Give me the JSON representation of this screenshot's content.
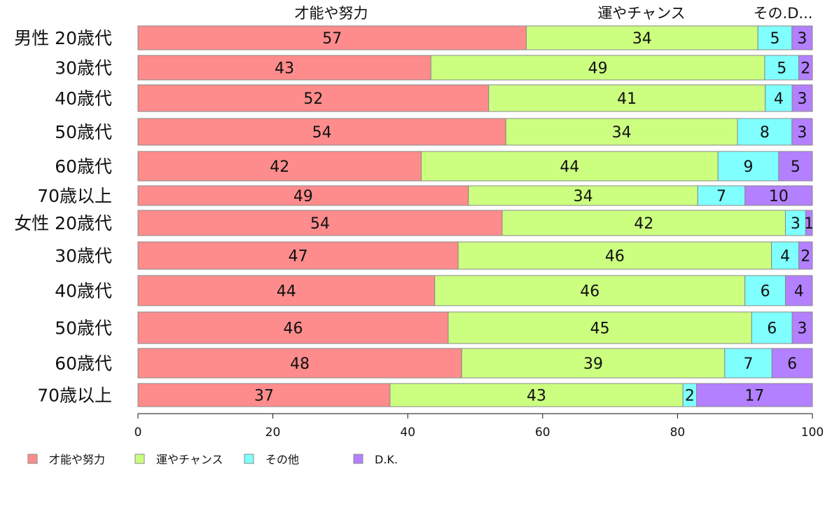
{
  "chart_data": {
    "type": "bar",
    "orientation": "horizontal",
    "stacked": true,
    "xlim": [
      0,
      100
    ],
    "x_ticks": [
      "0",
      "20",
      "40",
      "60",
      "80",
      "100"
    ],
    "top_labels": [
      "才能や努力",
      "運やチャンス",
      "その.D..."
    ],
    "categories": [
      "男性 20歳代",
      "30歳代",
      "40歳代",
      "50歳代",
      "60歳代",
      "70歳以上",
      "女性 20歳代",
      "30歳代",
      "40歳代",
      "50歳代",
      "60歳代",
      "70歳以上"
    ],
    "series": [
      {
        "name": "才能や努力",
        "color": "#ff8c8c",
        "values": [
          57,
          43,
          52,
          54,
          42,
          49,
          54,
          47,
          44,
          46,
          48,
          37
        ]
      },
      {
        "name": "運やチャンス",
        "color": "#ccff80",
        "values": [
          34,
          49,
          41,
          34,
          44,
          34,
          42,
          46,
          46,
          45,
          39,
          43
        ]
      },
      {
        "name": "その他",
        "color": "#80ffff",
        "values": [
          5,
          5,
          4,
          8,
          9,
          7,
          3,
          4,
          6,
          6,
          7,
          2
        ]
      },
      {
        "name": "D.K.",
        "color": "#b380ff",
        "values": [
          3,
          2,
          3,
          3,
          5,
          10,
          1,
          2,
          4,
          3,
          6,
          17
        ]
      }
    ],
    "grid": false,
    "legend_position": "bottom-left"
  }
}
